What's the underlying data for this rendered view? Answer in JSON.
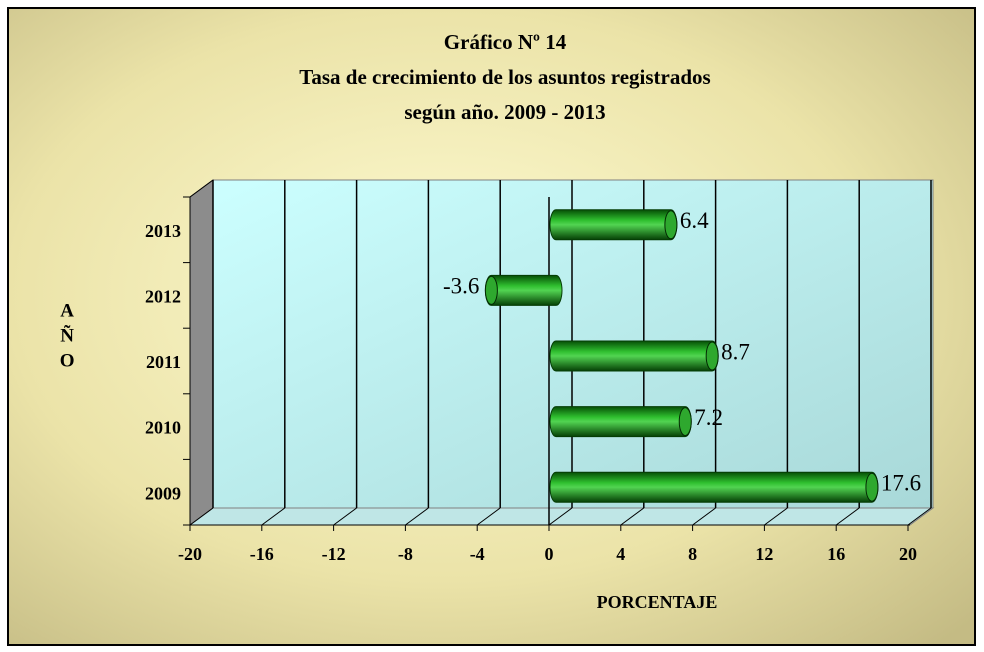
{
  "chart_data": {
    "type": "bar",
    "orientation": "horizontal",
    "title_lines": [
      "Gráfico Nº 14",
      "Tasa de crecimiento de los asuntos registrados",
      "según año. 2009 - 2013"
    ],
    "x_label": "PORCENTAJE",
    "y_label": "AÑO",
    "categories": [
      "2009",
      "2010",
      "2011",
      "2012",
      "2013"
    ],
    "values": [
      17.6,
      7.2,
      8.7,
      -3.6,
      6.4
    ],
    "color": "#0a8c0a",
    "xlim": [
      -20,
      20
    ],
    "xticks": [
      -20,
      -16,
      -12,
      -8,
      -4,
      0,
      4,
      8,
      12,
      16,
      20
    ],
    "grid": true
  }
}
